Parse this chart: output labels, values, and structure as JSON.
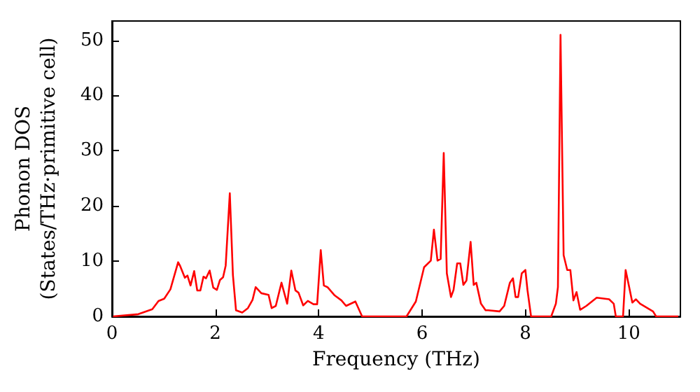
{
  "chart_data": {
    "type": "line",
    "xlabel": "Frequency (THz)",
    "ylabel": "Phonon DOS\n(States/THz·primitive cell)",
    "xlim": [
      0,
      11
    ],
    "xticks": [
      0,
      2,
      4,
      6,
      8,
      10
    ],
    "ylim": [
      0,
      53.5
    ],
    "yticks": [
      0,
      10,
      20,
      30,
      40,
      50
    ],
    "grid": false,
    "marker": "none",
    "line_style": "solid",
    "series": [
      {
        "color": "#ff0000",
        "x": [
          0.02,
          0.51,
          0.78,
          0.9,
          1.01,
          1.13,
          1.28,
          1.32,
          1.41,
          1.46,
          1.52,
          1.59,
          1.65,
          1.71,
          1.77,
          1.82,
          1.89,
          1.96,
          2.03,
          2.09,
          2.15,
          2.2,
          2.28,
          2.34,
          2.4,
          2.52,
          2.63,
          2.72,
          2.78,
          2.89,
          3.03,
          3.09,
          3.17,
          3.28,
          3.39,
          3.47,
          3.55,
          3.61,
          3.7,
          3.79,
          3.9,
          3.97,
          4.04,
          4.1,
          4.17,
          4.31,
          4.44,
          4.53,
          4.71,
          4.84,
          5.7,
          5.88,
          6.04,
          6.17,
          6.23,
          6.3,
          6.36,
          6.42,
          6.48,
          6.56,
          6.61,
          6.68,
          6.74,
          6.8,
          6.86,
          6.94,
          7.0,
          7.05,
          7.14,
          7.23,
          7.28,
          7.5,
          7.59,
          7.7,
          7.76,
          7.81,
          7.86,
          7.93,
          8.0,
          8.04,
          8.11,
          8.5,
          8.59,
          8.63,
          8.68,
          8.74,
          8.81,
          8.87,
          8.93,
          8.99,
          9.06,
          9.18,
          9.38,
          9.62,
          9.71,
          9.75,
          9.89,
          9.94,
          10.0,
          10.07,
          10.14,
          10.22,
          10.47,
          10.53,
          10.96
        ],
        "values": [
          0,
          0.4,
          1.3,
          2.8,
          3.2,
          4.9,
          9.8,
          9.1,
          7.0,
          7.4,
          5.6,
          8.2,
          4.7,
          4.7,
          7.2,
          6.9,
          8.3,
          5.2,
          4.8,
          6.6,
          7.1,
          9.2,
          22.3,
          7.5,
          1.1,
          0.7,
          1.5,
          3.0,
          5.3,
          4.2,
          3.9,
          1.5,
          1.9,
          6.1,
          2.3,
          8.3,
          4.7,
          4.3,
          2.0,
          2.8,
          2.2,
          2.2,
          12.0,
          5.6,
          5.3,
          3.8,
          2.9,
          1.9,
          2.7,
          0,
          0,
          2.7,
          8.9,
          10.1,
          15.7,
          10.1,
          10.4,
          29.6,
          7.8,
          3.5,
          4.8,
          9.6,
          9.6,
          5.7,
          6.5,
          13.5,
          5.7,
          6.1,
          2.3,
          1.1,
          1.1,
          0.9,
          1.9,
          6.1,
          6.9,
          3.5,
          3.5,
          7.8,
          8.4,
          4.8,
          0,
          0,
          2.3,
          5.3,
          51,
          11.1,
          8.4,
          8.4,
          2.9,
          4.4,
          1.2,
          1.9,
          3.4,
          3.1,
          2.3,
          0,
          0,
          8.4,
          5.7,
          2.5,
          3.1,
          2.3,
          0.9,
          0,
          0
        ]
      }
    ]
  }
}
